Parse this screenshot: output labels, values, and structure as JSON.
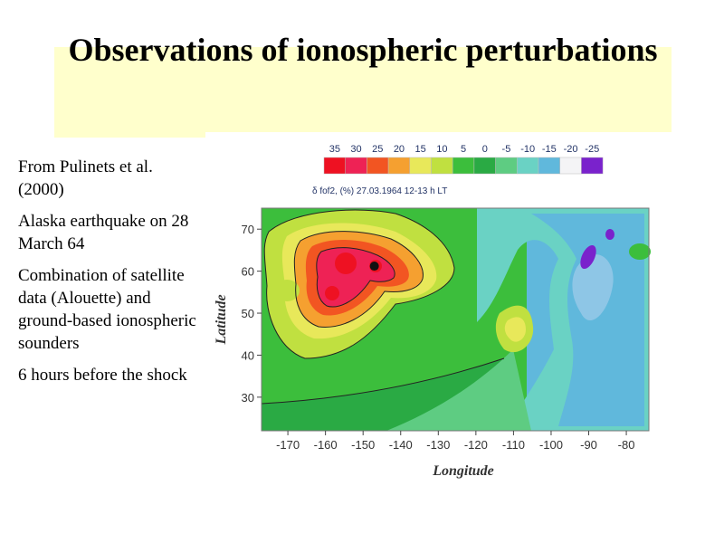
{
  "slide": {
    "title": "Observations of ionospheric perturbations",
    "bullets": [
      "From Pulinets et al. (2000)",
      "Alaska earthquake on 28 March 64",
      "Combination of satellite data (Alouette) and ground-based ionospheric sounders",
      "6 hours before the shock"
    ]
  },
  "chart_data": {
    "type": "heatmap",
    "title": "δ fof2, (%)   27.03.1964   12-13 h LT",
    "xlabel": "Longitude",
    "ylabel": "Latitude",
    "x_ticks": [
      "-170",
      "-160",
      "-150",
      "-140",
      "-130",
      "-120",
      "-110",
      "-100",
      "-90",
      "-80"
    ],
    "y_ticks": [
      "70",
      "60",
      "50",
      "40",
      "30"
    ],
    "xlim": [
      -177,
      -74
    ],
    "ylim": [
      22,
      75
    ],
    "colorbar": {
      "levels": [
        "35",
        "30",
        "25",
        "20",
        "15",
        "10",
        "5",
        "0",
        "-5",
        "-10",
        "-15",
        "-20",
        "-25"
      ],
      "colors": [
        "#ee1122",
        "#ee2255",
        "#f25522",
        "#f5a030",
        "#e8e85a",
        "#c0e040",
        "#3cbe3c",
        "#2aaa44",
        "#5ecc82",
        "#6ad2c4",
        "#60b8dc",
        "#f4f4f6",
        "#7a22cc"
      ]
    },
    "epicenter": {
      "lon": -147,
      "lat": 61.2
    },
    "background": "#3cbe3c"
  }
}
